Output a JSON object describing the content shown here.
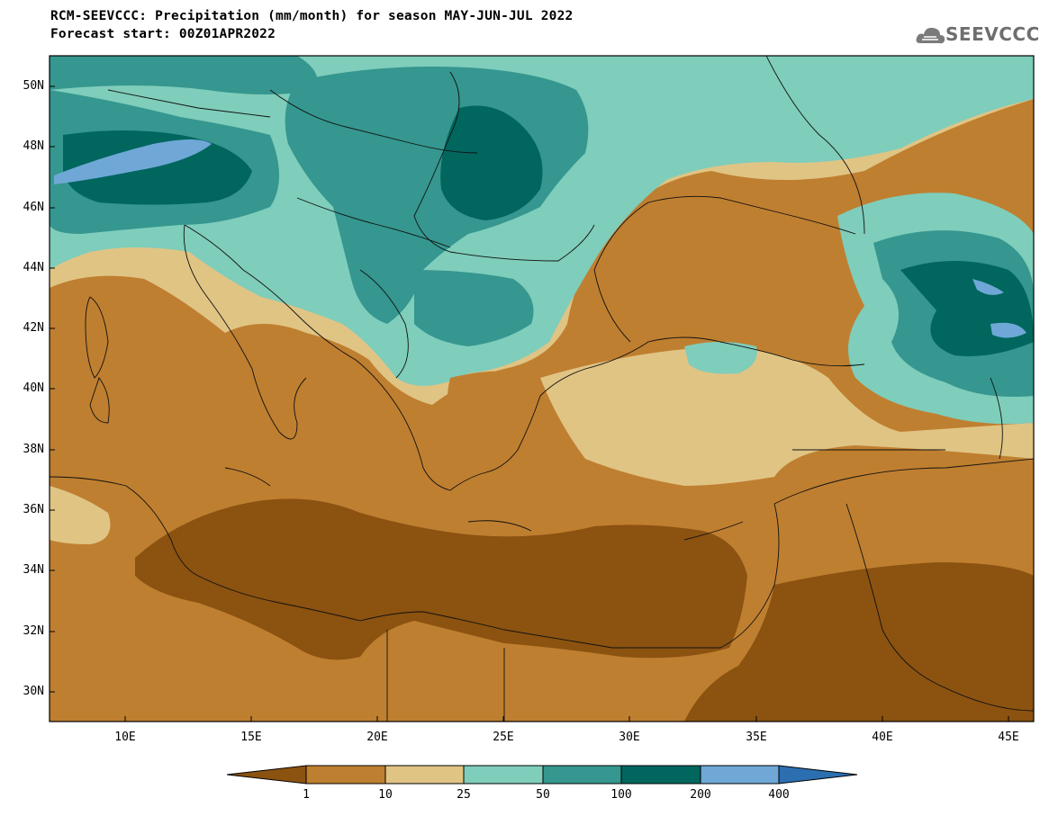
{
  "header": {
    "title": "RCM-SEEVCCC: Precipitation (mm/month) for season MAY-JUN-JUL 2022",
    "subtitle": "Forecast start: 00Z01APR2022"
  },
  "logo": {
    "text": "SEEVCCC",
    "icon": "cloud-icon"
  },
  "map": {
    "lat_labels": [
      "50N",
      "48N",
      "46N",
      "44N",
      "42N",
      "40N",
      "38N",
      "36N",
      "34N",
      "32N",
      "30N"
    ],
    "lon_labels": [
      "10E",
      "15E",
      "20E",
      "25E",
      "30E",
      "35E",
      "40E",
      "45E"
    ],
    "lon_range": [
      7,
      46
    ],
    "lat_range": [
      29,
      51
    ]
  },
  "colorbar": {
    "labels": [
      "1",
      "10",
      "25",
      "50",
      "100",
      "200",
      "400"
    ],
    "colors": [
      "#8b5210",
      "#bf7f30",
      "#e0c484",
      "#7fcdbb",
      "#35978f",
      "#01665e",
      "#6fa8d6",
      "#2c6fb0"
    ]
  }
}
